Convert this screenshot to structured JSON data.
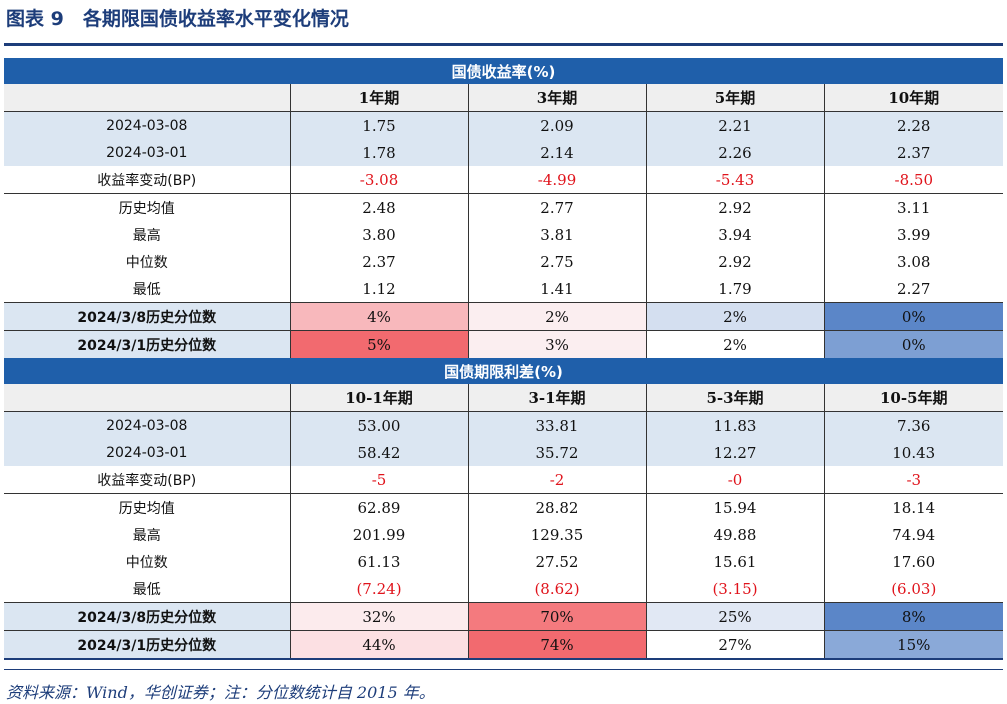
{
  "header": {
    "title": "图表 9　各期限国债收益率水平变化情况"
  },
  "yield_section": {
    "heading": "国债收益率(%)",
    "columns": [
      "1年期",
      "3年期",
      "5年期",
      "10年期"
    ],
    "rows": [
      {
        "label": "2024-03-08",
        "values": [
          "1.75",
          "2.09",
          "2.21",
          "2.28"
        ]
      },
      {
        "label": "2024-03-01",
        "values": [
          "1.78",
          "2.14",
          "2.26",
          "2.37"
        ]
      },
      {
        "label": "收益率变动(BP)",
        "values": [
          "-3.08",
          "-4.99",
          "-5.43",
          "-8.50"
        ]
      },
      {
        "label": "历史均值",
        "values": [
          "2.48",
          "2.77",
          "2.92",
          "3.11"
        ]
      },
      {
        "label": "最高",
        "values": [
          "3.80",
          "3.81",
          "3.94",
          "3.99"
        ]
      },
      {
        "label": "中位数",
        "values": [
          "2.37",
          "2.75",
          "2.92",
          "3.08"
        ]
      },
      {
        "label": "最低",
        "values": [
          "1.12",
          "1.41",
          "1.79",
          "2.27"
        ]
      }
    ],
    "percentile_rows": [
      {
        "label": "2024/3/8历史分位数",
        "values": [
          "4%",
          "2%",
          "2%",
          "0%"
        ],
        "colors": [
          "#f8b8bc",
          "#fbeef0",
          "#d4dff0",
          "#5b86c8"
        ]
      },
      {
        "label": "2024/3/1历史分位数",
        "values": [
          "5%",
          "3%",
          "2%",
          "0%"
        ],
        "colors": [
          "#f26a6f",
          "#fbeef0",
          "#ffffff",
          "#7d9fd3"
        ]
      }
    ]
  },
  "spread_section": {
    "heading": "国债期限利差(%)",
    "columns": [
      "10-1年期",
      "3-1年期",
      "5-3年期",
      "10-5年期"
    ],
    "rows": [
      {
        "label": "2024-03-08",
        "values": [
          "53.00",
          "33.81",
          "11.83",
          "7.36"
        ]
      },
      {
        "label": "2024-03-01",
        "values": [
          "58.42",
          "35.72",
          "12.27",
          "10.43"
        ]
      },
      {
        "label": "收益率变动(BP)",
        "values": [
          "-5",
          "-2",
          "-0",
          "-3"
        ]
      },
      {
        "label": "历史均值",
        "values": [
          "62.89",
          "28.82",
          "15.94",
          "18.14"
        ]
      },
      {
        "label": "最高",
        "values": [
          "201.99",
          "129.35",
          "49.88",
          "74.94"
        ]
      },
      {
        "label": "中位数",
        "values": [
          "61.13",
          "27.52",
          "15.61",
          "17.60"
        ]
      },
      {
        "label": "最低",
        "values": [
          "(7.24)",
          "(8.62)",
          "(3.15)",
          "(6.03)"
        ]
      }
    ],
    "percentile_rows": [
      {
        "label": "2024/3/8历史分位数",
        "values": [
          "32%",
          "70%",
          "25%",
          "8%"
        ],
        "colors": [
          "#fcebed",
          "#f47a7e",
          "#e1e8f4",
          "#5b86c8"
        ]
      },
      {
        "label": "2024/3/1历史分位数",
        "values": [
          "44%",
          "74%",
          "27%",
          "15%"
        ],
        "colors": [
          "#fce0e3",
          "#f26a6f",
          "#ffffff",
          "#8aa9d8"
        ]
      }
    ]
  },
  "footer": {
    "source": "资料来源：Wind，华创证券；注：分位数统计自 2015 年。"
  },
  "colors": {
    "header_blue": "#1f5faa",
    "light_blue": "#dbe6f2",
    "negative_red": "#e0131b"
  }
}
